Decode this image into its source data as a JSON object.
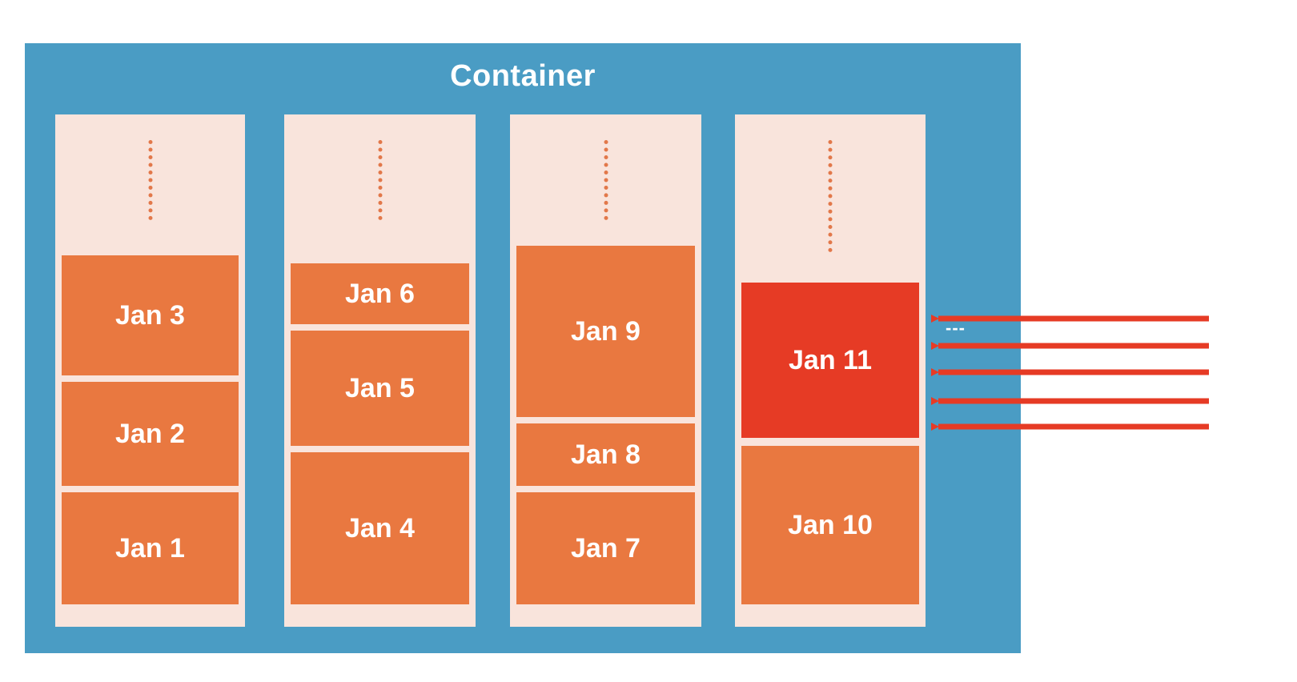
{
  "container": {
    "title": "Container",
    "partitions": [
      {
        "blocks": [
          "Jan 3",
          "Jan 2",
          "Jan 1"
        ]
      },
      {
        "blocks": [
          "Jan 6",
          "Jan 5",
          "Jan 4"
        ]
      },
      {
        "blocks": [
          "Jan 9",
          "Jan 8",
          "Jan 7"
        ]
      },
      {
        "blocks": [
          "Jan 11",
          "Jan 10"
        ]
      }
    ],
    "overflow_text": "---"
  },
  "colors": {
    "container_bg": "#4a9cc4",
    "partition_bg": "#f9e4dc",
    "block": "#e97840",
    "active_block": "#e63b25",
    "arrow": "#e63b25"
  },
  "incoming_writes": {
    "arrow_count": 5,
    "target": "Jan 11"
  }
}
